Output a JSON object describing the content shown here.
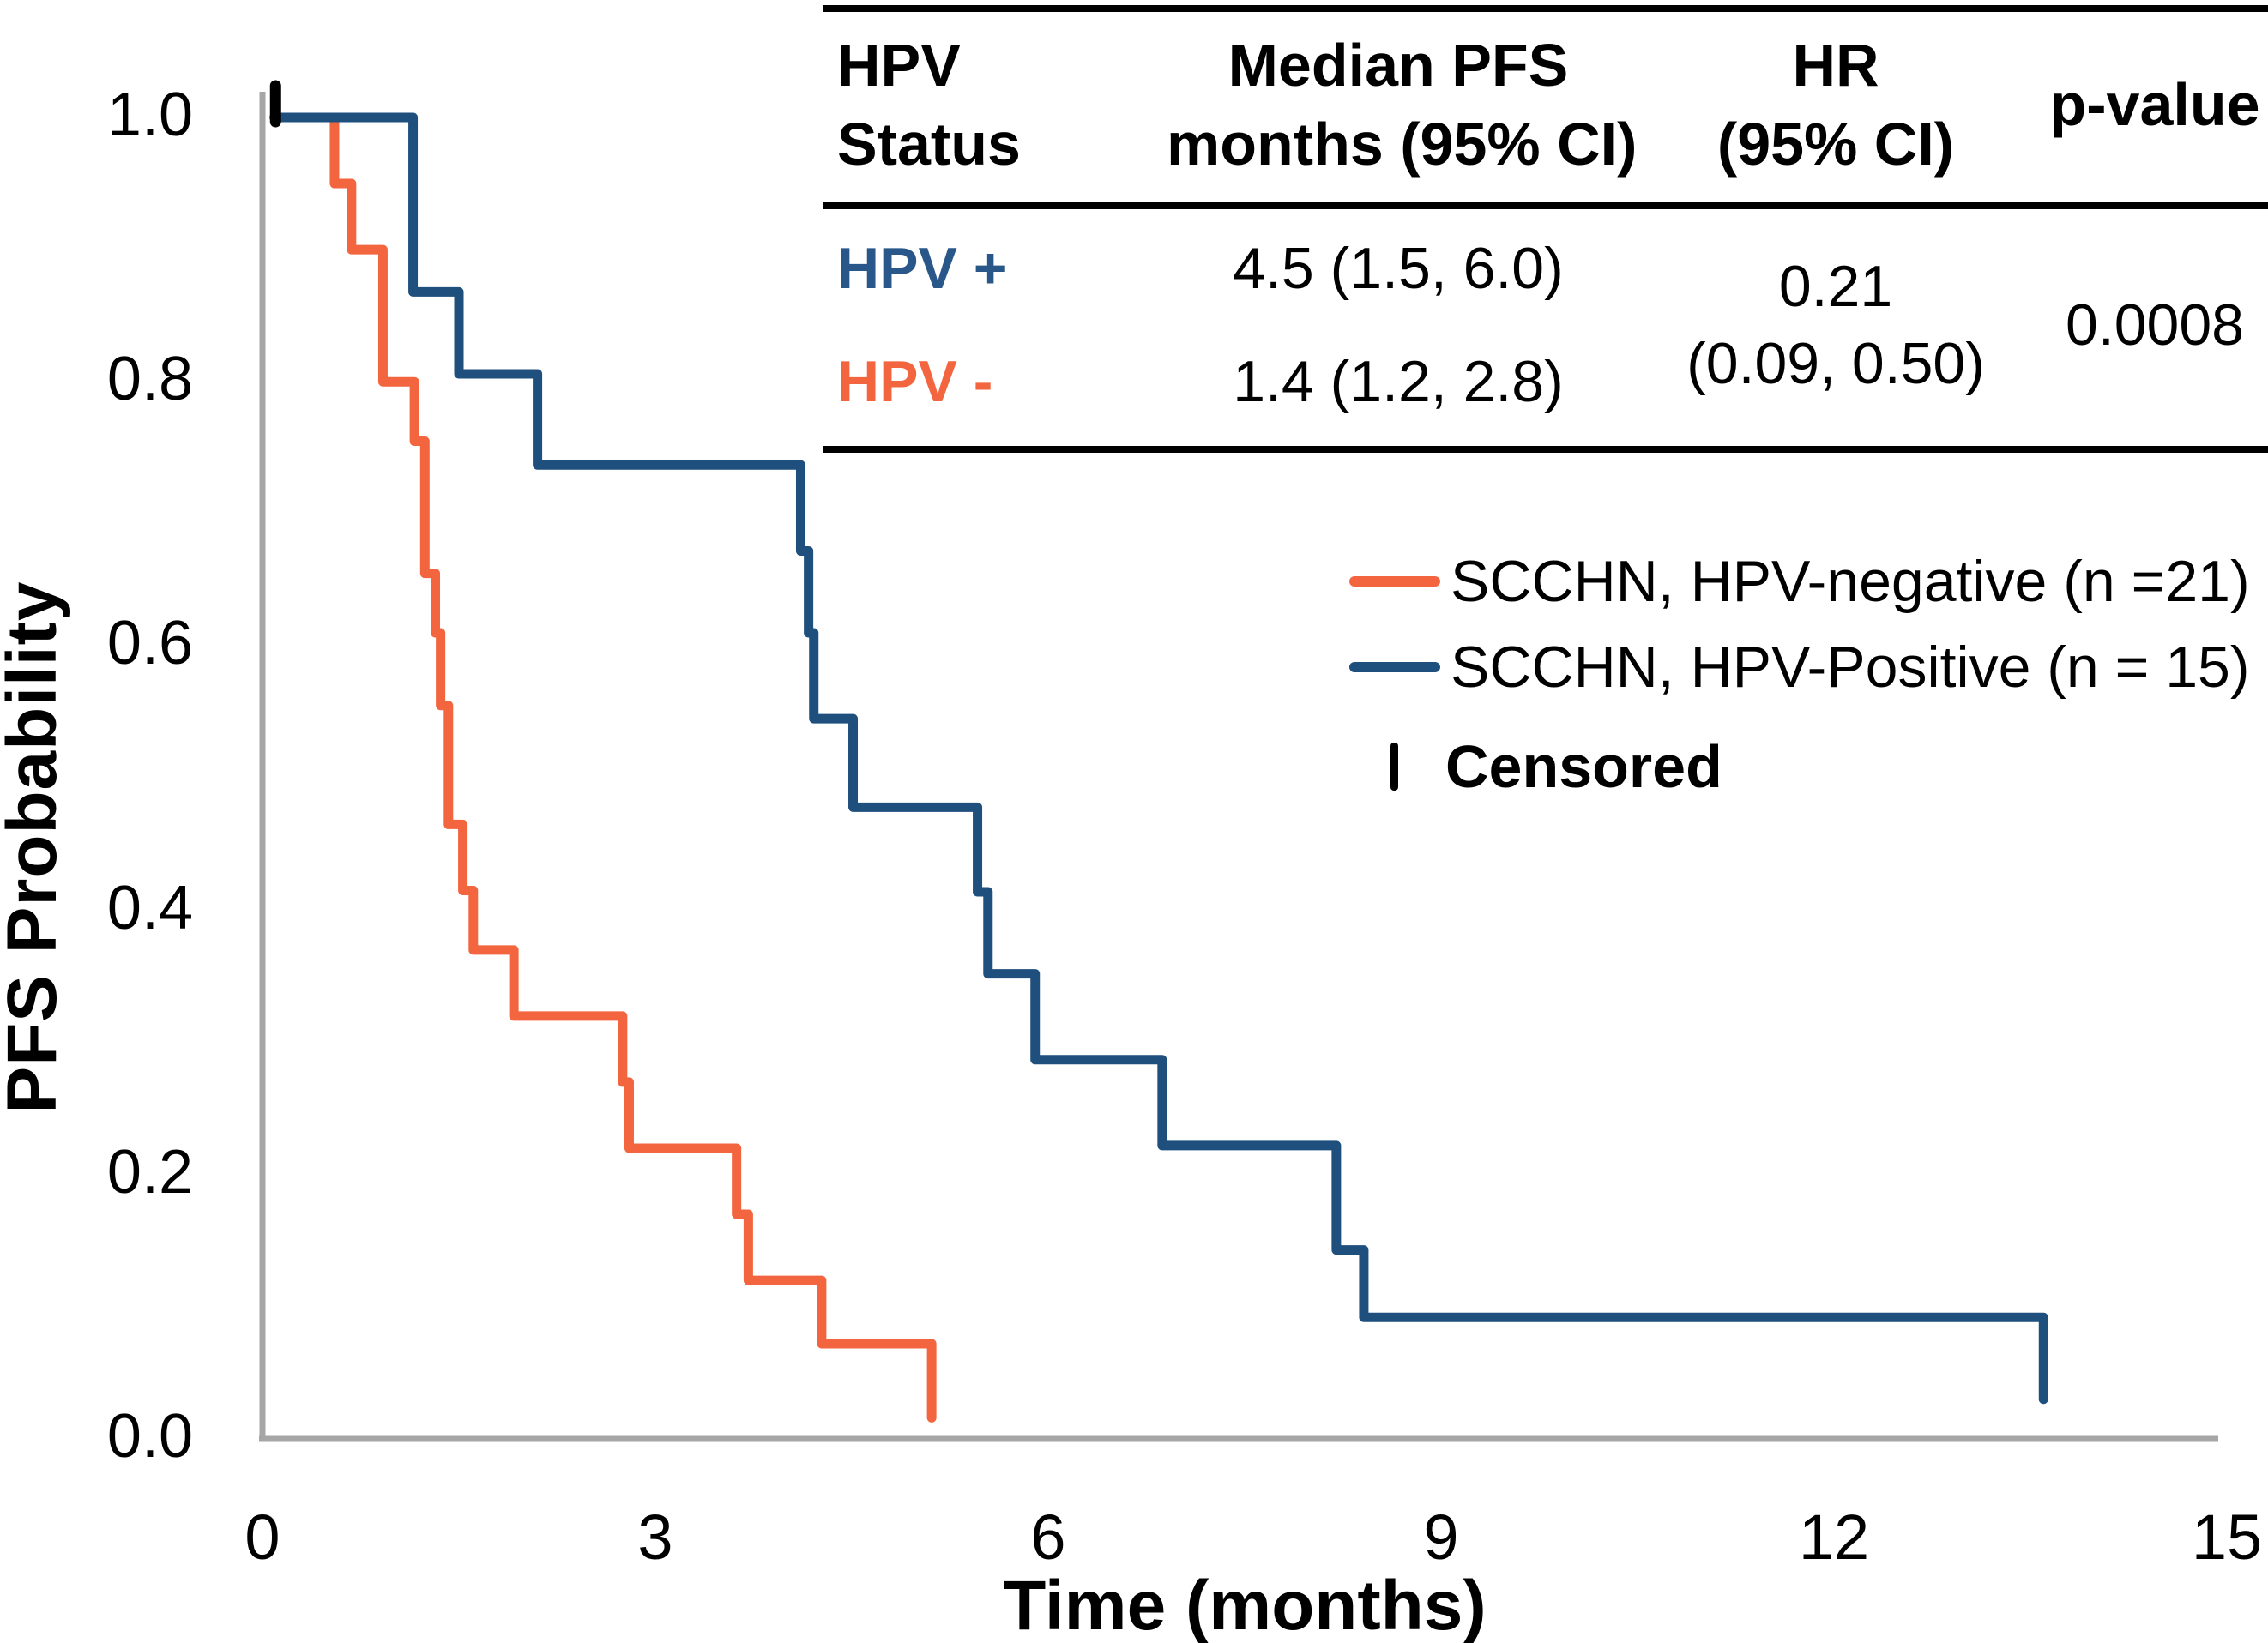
{
  "table": {
    "columns": [
      {
        "lines": [
          "HPV",
          "Status"
        ]
      },
      {
        "lines": [
          "Median PFS",
          "months (95% CI)"
        ]
      },
      {
        "lines": [
          "HR",
          "(95% CI)"
        ]
      },
      {
        "lines": [
          "p-value"
        ]
      }
    ],
    "rows": [
      {
        "label": "HPV +",
        "color": "#2a578a",
        "median": "4.5 (1.5, 6.0)"
      },
      {
        "label": "HPV -",
        "color": "#f2653f",
        "median": "1.4 (1.2, 2.8)"
      }
    ],
    "hr_line1": "0.21",
    "hr_line2": "(0.09, 0.50)",
    "p_value": "0.0008"
  },
  "legend": {
    "items": [
      {
        "label": "SCCHN, HPV-negative (n =21)",
        "color": "#f2653f"
      },
      {
        "label": "SCCHN, HPV-Positive (n = 15)",
        "color": "#1f4f7d"
      }
    ],
    "censored_label": "Censored"
  },
  "chart_data": {
    "type": "line",
    "subtype": "kaplan-meier-step",
    "xlabel": "Time (months)",
    "ylabel": "PFS Probability",
    "xlim": [
      0,
      15
    ],
    "ylim": [
      0,
      1
    ],
    "xticks": [
      0,
      3,
      6,
      9,
      12,
      15
    ],
    "ytick_labels": [
      "1.0",
      "0.8",
      "0.6",
      "0.4",
      "0.2",
      "0.0"
    ],
    "grid": false,
    "axis_color": "#a6a6a6",
    "censor_color": "#000000",
    "series": [
      {
        "name": "SCCHN, HPV-negative (n =21)",
        "n": 21,
        "color": "#f2653f",
        "start": [
          0.09,
          1.0
        ],
        "drops": [
          [
            0.55,
            0.95
          ],
          [
            0.68,
            0.9
          ],
          [
            0.92,
            0.8
          ],
          [
            1.16,
            0.755
          ],
          [
            1.24,
            0.655
          ],
          [
            1.32,
            0.61
          ],
          [
            1.36,
            0.555
          ],
          [
            1.42,
            0.465
          ],
          [
            1.53,
            0.415
          ],
          [
            1.61,
            0.37
          ],
          [
            1.92,
            0.32
          ],
          [
            2.75,
            0.27
          ],
          [
            2.8,
            0.22
          ],
          [
            3.62,
            0.17
          ],
          [
            3.71,
            0.12
          ],
          [
            4.27,
            0.072
          ]
        ],
        "end": [
          5.11,
          0.016
        ],
        "censor_ticks": []
      },
      {
        "name": "SCCHN, HPV-Positive (n = 15)",
        "n": 15,
        "color": "#1f4f7d",
        "start": [
          0.09,
          1.0
        ],
        "drops": [
          [
            1.15,
            0.868
          ],
          [
            1.5,
            0.806
          ],
          [
            2.1,
            0.737
          ],
          [
            4.11,
            0.672
          ],
          [
            4.17,
            0.61
          ],
          [
            4.21,
            0.545
          ],
          [
            4.51,
            0.478
          ],
          [
            5.46,
            0.414
          ],
          [
            5.54,
            0.352
          ],
          [
            5.9,
            0.287
          ],
          [
            6.87,
            0.222
          ],
          [
            8.2,
            0.143
          ],
          [
            8.41,
            0.092
          ]
        ],
        "end": [
          13.6,
          0.03
        ],
        "censor_ticks": [
          [
            0.1,
            1.0
          ]
        ]
      }
    ]
  }
}
